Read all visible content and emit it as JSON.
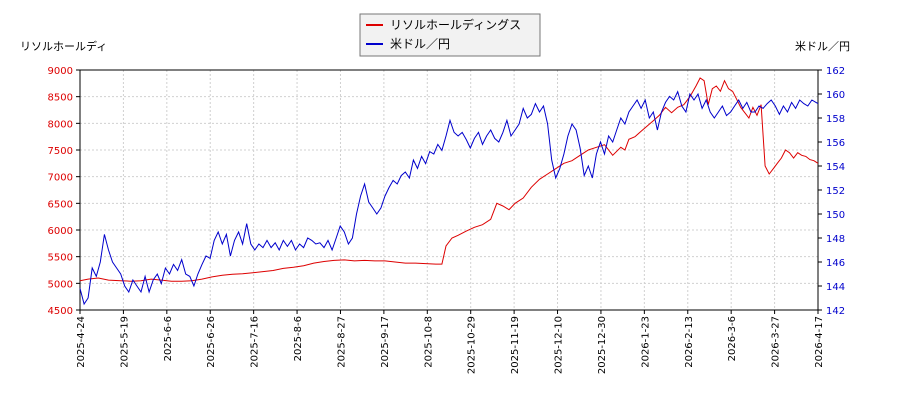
{
  "chart_data": {
    "type": "line",
    "left_axis_label": "リソルホールディ",
    "right_axis_label": "米ドル／円",
    "left_ylim": [
      4500,
      9000
    ],
    "left_yticks": [
      4500,
      5000,
      5500,
      6000,
      6500,
      7000,
      7500,
      8000,
      8500,
      9000
    ],
    "right_ylim": [
      142,
      162
    ],
    "right_yticks": [
      142,
      144,
      146,
      148,
      150,
      152,
      154,
      156,
      158,
      160,
      162
    ],
    "x_tick_labels": [
      "2025-4-24",
      "2025-5-19",
      "2025-6-6",
      "2025-6-26",
      "2025-7-16",
      "2025-8-6",
      "2025-8-27",
      "2025-9-17",
      "2025-10-8",
      "2025-10-29",
      "2025-11-19",
      "2025-12-10",
      "2025-12-30",
      "2026-1-23",
      "2026-2-13",
      "2026-3-6",
      "2026-3-27",
      "2026-4-17"
    ],
    "legend_position": "top-center",
    "grid": true,
    "series": [
      {
        "name": "リソルホールディングス",
        "axis": "left",
        "color": "#dd0000",
        "values": [
          [
            0,
            5050
          ],
          [
            4,
            5080
          ],
          [
            9,
            5100
          ],
          [
            14,
            5060
          ],
          [
            20,
            5050
          ],
          [
            25,
            5040
          ],
          [
            30,
            5050
          ],
          [
            35,
            5080
          ],
          [
            40,
            5060
          ],
          [
            45,
            5040
          ],
          [
            50,
            5040
          ],
          [
            55,
            5050
          ],
          [
            60,
            5080
          ],
          [
            65,
            5120
          ],
          [
            70,
            5150
          ],
          [
            75,
            5170
          ],
          [
            80,
            5180
          ],
          [
            85,
            5200
          ],
          [
            90,
            5220
          ],
          [
            95,
            5240
          ],
          [
            100,
            5280
          ],
          [
            105,
            5300
          ],
          [
            110,
            5330
          ],
          [
            115,
            5380
          ],
          [
            120,
            5410
          ],
          [
            125,
            5430
          ],
          [
            130,
            5440
          ],
          [
            135,
            5420
          ],
          [
            140,
            5430
          ],
          [
            145,
            5420
          ],
          [
            150,
            5420
          ],
          [
            155,
            5400
          ],
          [
            160,
            5380
          ],
          [
            165,
            5380
          ],
          [
            170,
            5370
          ],
          [
            175,
            5360
          ],
          [
            178,
            5360
          ],
          [
            180,
            5700
          ],
          [
            183,
            5850
          ],
          [
            186,
            5900
          ],
          [
            190,
            5980
          ],
          [
            194,
            6050
          ],
          [
            198,
            6100
          ],
          [
            202,
            6200
          ],
          [
            205,
            6500
          ],
          [
            208,
            6450
          ],
          [
            211,
            6380
          ],
          [
            214,
            6500
          ],
          [
            218,
            6600
          ],
          [
            222,
            6800
          ],
          [
            226,
            6950
          ],
          [
            230,
            7050
          ],
          [
            234,
            7150
          ],
          [
            238,
            7250
          ],
          [
            242,
            7300
          ],
          [
            246,
            7400
          ],
          [
            250,
            7500
          ],
          [
            254,
            7550
          ],
          [
            258,
            7600
          ],
          [
            262,
            7400
          ],
          [
            266,
            7550
          ],
          [
            268,
            7500
          ],
          [
            270,
            7700
          ],
          [
            273,
            7750
          ],
          [
            276,
            7850
          ],
          [
            279,
            7950
          ],
          [
            282,
            8050
          ],
          [
            285,
            8150
          ],
          [
            288,
            8300
          ],
          [
            291,
            8200
          ],
          [
            294,
            8300
          ],
          [
            297,
            8350
          ],
          [
            300,
            8500
          ],
          [
            303,
            8700
          ],
          [
            305,
            8850
          ],
          [
            307,
            8800
          ],
          [
            309,
            8350
          ],
          [
            311,
            8650
          ],
          [
            313,
            8700
          ],
          [
            315,
            8600
          ],
          [
            317,
            8800
          ],
          [
            319,
            8650
          ],
          [
            321,
            8600
          ],
          [
            323,
            8450
          ],
          [
            325,
            8300
          ],
          [
            327,
            8200
          ],
          [
            329,
            8100
          ],
          [
            331,
            8300
          ],
          [
            333,
            8150
          ],
          [
            335,
            8350
          ],
          [
            337,
            7200
          ],
          [
            339,
            7050
          ],
          [
            341,
            7150
          ],
          [
            343,
            7250
          ],
          [
            345,
            7350
          ],
          [
            347,
            7500
          ],
          [
            349,
            7450
          ],
          [
            351,
            7350
          ],
          [
            353,
            7450
          ],
          [
            355,
            7400
          ],
          [
            357,
            7380
          ],
          [
            359,
            7320
          ],
          [
            361,
            7300
          ],
          [
            363,
            7250
          ]
        ]
      },
      {
        "name": "米ドル／円",
        "axis": "right",
        "color": "#0000cc",
        "values": [
          [
            0,
            143.8
          ],
          [
            2,
            142.5
          ],
          [
            4,
            143.0
          ],
          [
            6,
            145.5
          ],
          [
            8,
            144.8
          ],
          [
            10,
            146.0
          ],
          [
            12,
            148.3
          ],
          [
            14,
            147.0
          ],
          [
            16,
            146.0
          ],
          [
            18,
            145.5
          ],
          [
            20,
            145.0
          ],
          [
            22,
            144.0
          ],
          [
            24,
            143.5
          ],
          [
            26,
            144.5
          ],
          [
            28,
            144.0
          ],
          [
            30,
            143.5
          ],
          [
            32,
            144.8
          ],
          [
            34,
            143.5
          ],
          [
            36,
            144.5
          ],
          [
            38,
            145.0
          ],
          [
            40,
            144.2
          ],
          [
            42,
            145.5
          ],
          [
            44,
            145.0
          ],
          [
            46,
            145.8
          ],
          [
            48,
            145.3
          ],
          [
            50,
            146.2
          ],
          [
            52,
            145.0
          ],
          [
            54,
            144.8
          ],
          [
            56,
            144.0
          ],
          [
            58,
            145.0
          ],
          [
            60,
            145.8
          ],
          [
            62,
            146.5
          ],
          [
            64,
            146.3
          ],
          [
            66,
            147.8
          ],
          [
            68,
            148.5
          ],
          [
            70,
            147.5
          ],
          [
            72,
            148.3
          ],
          [
            74,
            146.5
          ],
          [
            76,
            147.8
          ],
          [
            78,
            148.5
          ],
          [
            80,
            147.5
          ],
          [
            82,
            149.2
          ],
          [
            84,
            147.5
          ],
          [
            86,
            147.0
          ],
          [
            88,
            147.5
          ],
          [
            90,
            147.2
          ],
          [
            92,
            147.8
          ],
          [
            94,
            147.2
          ],
          [
            96,
            147.6
          ],
          [
            98,
            147.0
          ],
          [
            100,
            147.8
          ],
          [
            102,
            147.3
          ],
          [
            104,
            147.8
          ],
          [
            106,
            147.0
          ],
          [
            108,
            147.5
          ],
          [
            110,
            147.2
          ],
          [
            112,
            148.0
          ],
          [
            114,
            147.8
          ],
          [
            116,
            147.5
          ],
          [
            118,
            147.6
          ],
          [
            120,
            147.2
          ],
          [
            122,
            147.8
          ],
          [
            124,
            147.0
          ],
          [
            126,
            148.0
          ],
          [
            128,
            149.0
          ],
          [
            130,
            148.5
          ],
          [
            132,
            147.5
          ],
          [
            134,
            148.0
          ],
          [
            136,
            150.0
          ],
          [
            138,
            151.5
          ],
          [
            140,
            152.5
          ],
          [
            142,
            151.0
          ],
          [
            144,
            150.5
          ],
          [
            146,
            150.0
          ],
          [
            148,
            150.5
          ],
          [
            150,
            151.5
          ],
          [
            152,
            152.2
          ],
          [
            154,
            152.8
          ],
          [
            156,
            152.5
          ],
          [
            158,
            153.2
          ],
          [
            160,
            153.5
          ],
          [
            162,
            153.0
          ],
          [
            164,
            154.5
          ],
          [
            166,
            153.8
          ],
          [
            168,
            154.8
          ],
          [
            170,
            154.2
          ],
          [
            172,
            155.2
          ],
          [
            174,
            155.0
          ],
          [
            176,
            155.8
          ],
          [
            178,
            155.3
          ],
          [
            180,
            156.5
          ],
          [
            182,
            157.8
          ],
          [
            184,
            156.8
          ],
          [
            186,
            156.5
          ],
          [
            188,
            156.8
          ],
          [
            190,
            156.2
          ],
          [
            192,
            155.5
          ],
          [
            194,
            156.3
          ],
          [
            196,
            156.8
          ],
          [
            198,
            155.8
          ],
          [
            200,
            156.5
          ],
          [
            202,
            157.0
          ],
          [
            204,
            156.3
          ],
          [
            206,
            156.0
          ],
          [
            208,
            156.8
          ],
          [
            210,
            157.8
          ],
          [
            212,
            156.5
          ],
          [
            214,
            157.0
          ],
          [
            216,
            157.5
          ],
          [
            218,
            158.8
          ],
          [
            220,
            158.0
          ],
          [
            222,
            158.3
          ],
          [
            224,
            159.2
          ],
          [
            226,
            158.5
          ],
          [
            228,
            159.0
          ],
          [
            230,
            157.5
          ],
          [
            232,
            154.5
          ],
          [
            234,
            153.0
          ],
          [
            236,
            153.8
          ],
          [
            238,
            155.0
          ],
          [
            240,
            156.5
          ],
          [
            242,
            157.5
          ],
          [
            244,
            157.0
          ],
          [
            246,
            155.5
          ],
          [
            248,
            153.2
          ],
          [
            250,
            154.0
          ],
          [
            252,
            153.0
          ],
          [
            254,
            155.0
          ],
          [
            256,
            156.0
          ],
          [
            258,
            155.0
          ],
          [
            260,
            156.5
          ],
          [
            262,
            156.0
          ],
          [
            264,
            157.0
          ],
          [
            266,
            158.0
          ],
          [
            268,
            157.5
          ],
          [
            270,
            158.5
          ],
          [
            272,
            159.0
          ],
          [
            274,
            159.5
          ],
          [
            276,
            158.8
          ],
          [
            278,
            159.5
          ],
          [
            280,
            158.0
          ],
          [
            282,
            158.5
          ],
          [
            284,
            157.0
          ],
          [
            286,
            158.5
          ],
          [
            288,
            159.3
          ],
          [
            290,
            159.8
          ],
          [
            292,
            159.5
          ],
          [
            294,
            160.2
          ],
          [
            296,
            159.0
          ],
          [
            298,
            158.5
          ],
          [
            300,
            160.0
          ],
          [
            302,
            159.5
          ],
          [
            304,
            160.0
          ],
          [
            306,
            158.8
          ],
          [
            308,
            159.5
          ],
          [
            310,
            158.5
          ],
          [
            312,
            158.0
          ],
          [
            314,
            158.5
          ],
          [
            316,
            159.0
          ],
          [
            318,
            158.2
          ],
          [
            320,
            158.5
          ],
          [
            322,
            159.0
          ],
          [
            324,
            159.5
          ],
          [
            326,
            158.8
          ],
          [
            328,
            159.3
          ],
          [
            330,
            158.5
          ],
          [
            332,
            158.5
          ],
          [
            334,
            159.0
          ],
          [
            336,
            158.8
          ],
          [
            338,
            159.2
          ],
          [
            340,
            159.5
          ],
          [
            342,
            159.0
          ],
          [
            344,
            158.3
          ],
          [
            346,
            159.0
          ],
          [
            348,
            158.5
          ],
          [
            350,
            159.3
          ],
          [
            352,
            158.8
          ],
          [
            354,
            159.5
          ],
          [
            356,
            159.2
          ],
          [
            358,
            159.0
          ],
          [
            360,
            159.5
          ],
          [
            362,
            159.3
          ],
          [
            363,
            159.2
          ]
        ]
      }
    ]
  }
}
